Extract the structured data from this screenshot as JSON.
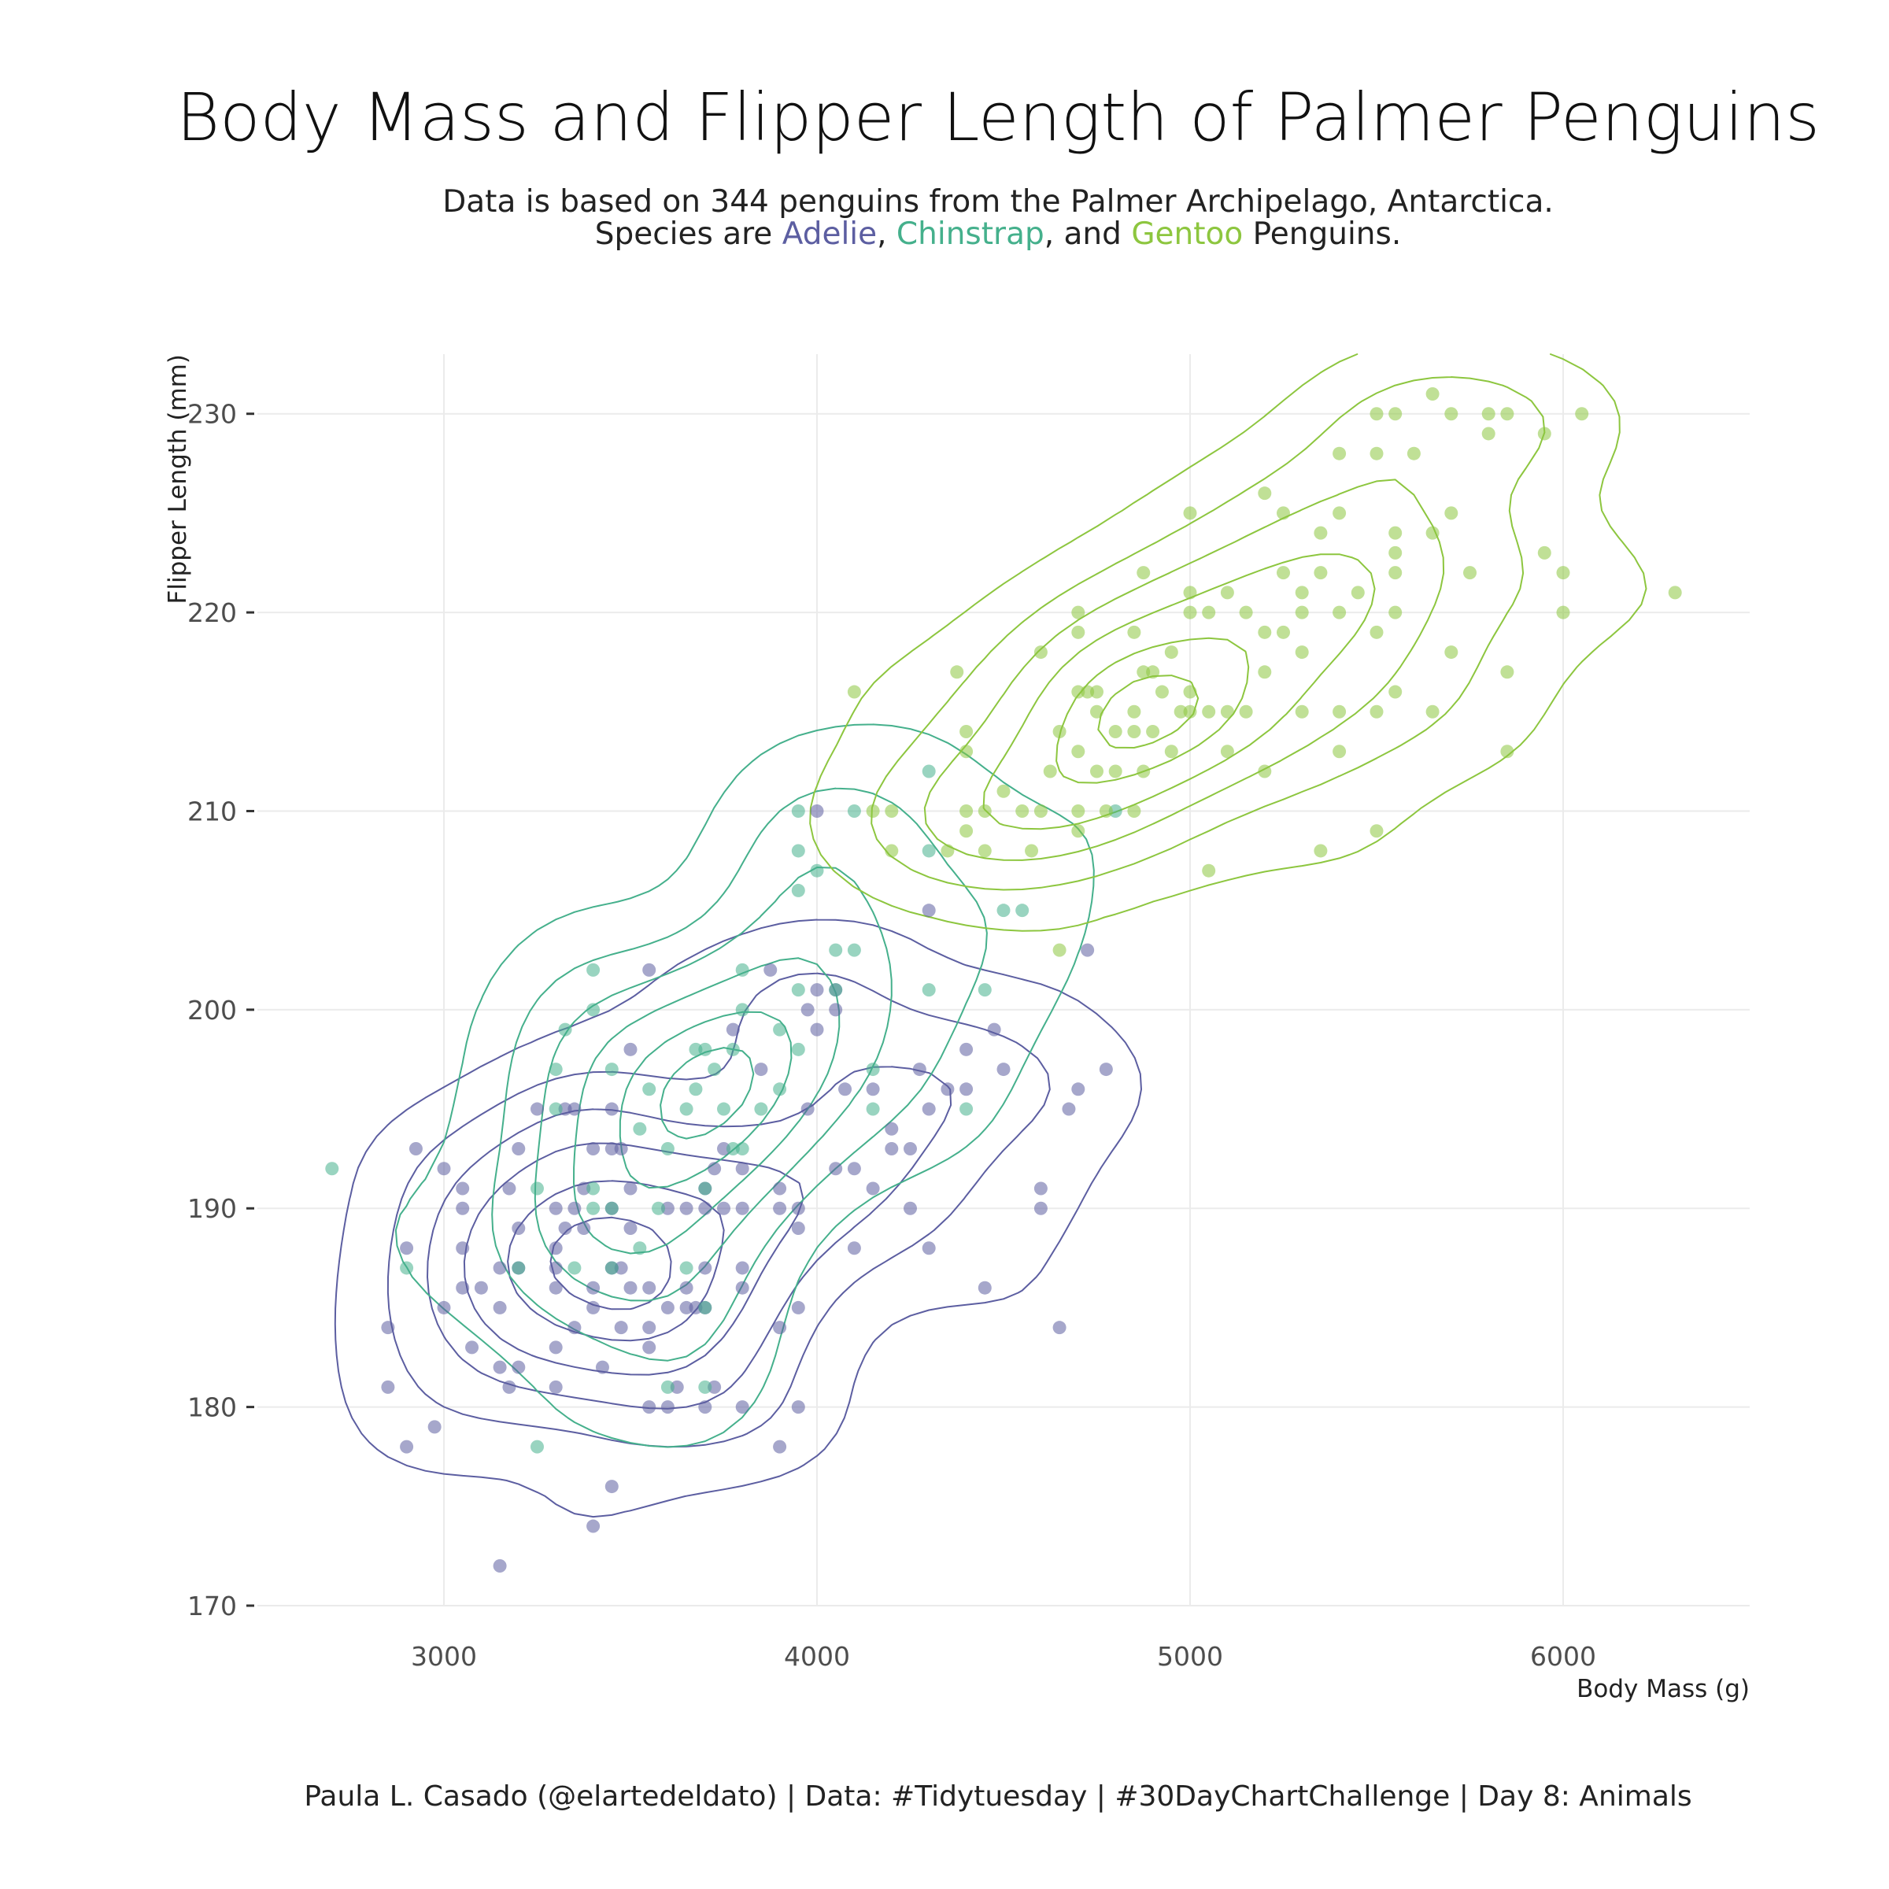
{
  "title": "Body Mass and Flipper Length of Palmer Penguins",
  "subtitle": {
    "line1": "Data is based on 344 penguins from the Palmer Archipelago, Antarctica.",
    "line2_prefix": "Species are ",
    "species": [
      "Adelie",
      "Chinstrap",
      "Gentoo"
    ],
    "sep1": ", ",
    "sep2": ", and ",
    "line2_suffix": " Penguins."
  },
  "caption": "Paula L. Casado (@elartedeldato) | Data: #Tidytuesday | #30DayChartChallenge | Day 8: Animals",
  "colors": {
    "Adelie": "#5C5EA1",
    "Chinstrap": "#45B08C",
    "Gentoo": "#8DC63F",
    "grid": "#EBEBEB"
  },
  "chart_data": {
    "type": "scatter",
    "xlabel": "Body Mass (g)",
    "ylabel": "Flipper Length (mm)",
    "xlim": [
      2500,
      6500
    ],
    "ylim": [
      170,
      233
    ],
    "x_ticks": [
      3000,
      4000,
      5000,
      6000
    ],
    "y_ticks": [
      170,
      180,
      190,
      200,
      210,
      220,
      230
    ],
    "grid": true,
    "legend": "none (species colored in subtitle)",
    "overlay": "2D density contours per species",
    "series": [
      {
        "name": "Adelie",
        "points": [
          [
            2850,
            181
          ],
          [
            2850,
            184
          ],
          [
            2900,
            178
          ],
          [
            2900,
            188
          ],
          [
            2925,
            193
          ],
          [
            2975,
            179
          ],
          [
            3000,
            185
          ],
          [
            3000,
            192
          ],
          [
            3050,
            186
          ],
          [
            3050,
            188
          ],
          [
            3050,
            190
          ],
          [
            3050,
            191
          ],
          [
            3075,
            183
          ],
          [
            3100,
            186
          ],
          [
            3150,
            172
          ],
          [
            3150,
            182
          ],
          [
            3150,
            185
          ],
          [
            3150,
            187
          ],
          [
            3175,
            181
          ],
          [
            3175,
            191
          ],
          [
            3200,
            182
          ],
          [
            3200,
            187
          ],
          [
            3200,
            189
          ],
          [
            3200,
            193
          ],
          [
            3250,
            195
          ],
          [
            3300,
            181
          ],
          [
            3300,
            186
          ],
          [
            3300,
            187
          ],
          [
            3300,
            188
          ],
          [
            3300,
            190
          ],
          [
            3325,
            189
          ],
          [
            3325,
            195
          ],
          [
            3350,
            184
          ],
          [
            3350,
            190
          ],
          [
            3350,
            195
          ],
          [
            3375,
            191
          ],
          [
            3375,
            189
          ],
          [
            3400,
            174
          ],
          [
            3400,
            185
          ],
          [
            3400,
            186
          ],
          [
            3400,
            193
          ],
          [
            3425,
            182
          ],
          [
            3450,
            176
          ],
          [
            3450,
            187
          ],
          [
            3450,
            190
          ],
          [
            3450,
            193
          ],
          [
            3450,
            195
          ],
          [
            3475,
            184
          ],
          [
            3475,
            187
          ],
          [
            3475,
            193
          ],
          [
            3500,
            186
          ],
          [
            3500,
            189
          ],
          [
            3500,
            191
          ],
          [
            3500,
            198
          ],
          [
            3550,
            180
          ],
          [
            3550,
            183
          ],
          [
            3550,
            184
          ],
          [
            3550,
            186
          ],
          [
            3550,
            202
          ],
          [
            3600,
            180
          ],
          [
            3600,
            185
          ],
          [
            3600,
            190
          ],
          [
            3625,
            181
          ],
          [
            3650,
            185
          ],
          [
            3650,
            186
          ],
          [
            3650,
            190
          ],
          [
            3675,
            185
          ],
          [
            3700,
            180
          ],
          [
            3700,
            187
          ],
          [
            3700,
            190
          ],
          [
            3700,
            191
          ],
          [
            3725,
            181
          ],
          [
            3725,
            192
          ],
          [
            3750,
            190
          ],
          [
            3750,
            193
          ],
          [
            3775,
            199
          ],
          [
            3800,
            180
          ],
          [
            3800,
            186
          ],
          [
            3800,
            187
          ],
          [
            3800,
            190
          ],
          [
            3800,
            192
          ],
          [
            3850,
            197
          ],
          [
            3875,
            202
          ],
          [
            3900,
            178
          ],
          [
            3900,
            184
          ],
          [
            3900,
            190
          ],
          [
            3900,
            191
          ],
          [
            3950,
            180
          ],
          [
            3950,
            185
          ],
          [
            3950,
            189
          ],
          [
            3950,
            190
          ],
          [
            3975,
            200
          ],
          [
            3975,
            195
          ],
          [
            4000,
            199
          ],
          [
            4000,
            201
          ],
          [
            4000,
            210
          ],
          [
            4050,
            192
          ],
          [
            4050,
            200
          ],
          [
            4050,
            201
          ],
          [
            4075,
            196
          ],
          [
            4100,
            188
          ],
          [
            4100,
            192
          ],
          [
            4150,
            191
          ],
          [
            4150,
            196
          ],
          [
            4200,
            193
          ],
          [
            4200,
            194
          ],
          [
            4250,
            190
          ],
          [
            4250,
            193
          ],
          [
            4275,
            197
          ],
          [
            4300,
            188
          ],
          [
            4300,
            195
          ],
          [
            4300,
            205
          ],
          [
            4350,
            196
          ],
          [
            4400,
            196
          ],
          [
            4400,
            198
          ],
          [
            4450,
            186
          ],
          [
            4475,
            199
          ],
          [
            4500,
            197
          ],
          [
            4600,
            190
          ],
          [
            4600,
            191
          ],
          [
            4650,
            184
          ],
          [
            4675,
            195
          ],
          [
            4700,
            196
          ],
          [
            4725,
            203
          ],
          [
            4775,
            197
          ],
          [
            3300,
            183
          ],
          [
            3700,
            185
          ]
        ]
      },
      {
        "name": "Chinstrap",
        "points": [
          [
            2700,
            192
          ],
          [
            2900,
            187
          ],
          [
            3200,
            187
          ],
          [
            3250,
            178
          ],
          [
            3250,
            191
          ],
          [
            3300,
            195
          ],
          [
            3300,
            197
          ],
          [
            3325,
            199
          ],
          [
            3350,
            187
          ],
          [
            3400,
            190
          ],
          [
            3400,
            191
          ],
          [
            3400,
            200
          ],
          [
            3400,
            202
          ],
          [
            3450,
            190
          ],
          [
            3450,
            197
          ],
          [
            3525,
            194
          ],
          [
            3525,
            188
          ],
          [
            3550,
            196
          ],
          [
            3575,
            190
          ],
          [
            3600,
            181
          ],
          [
            3600,
            193
          ],
          [
            3650,
            187
          ],
          [
            3650,
            195
          ],
          [
            3675,
            196
          ],
          [
            3675,
            198
          ],
          [
            3700,
            181
          ],
          [
            3700,
            185
          ],
          [
            3700,
            191
          ],
          [
            3700,
            198
          ],
          [
            3725,
            197
          ],
          [
            3750,
            195
          ],
          [
            3775,
            193
          ],
          [
            3775,
            198
          ],
          [
            3800,
            193
          ],
          [
            3800,
            200
          ],
          [
            3800,
            202
          ],
          [
            3850,
            195
          ],
          [
            3900,
            199
          ],
          [
            3900,
            196
          ],
          [
            3950,
            198
          ],
          [
            3950,
            201
          ],
          [
            3950,
            206
          ],
          [
            3950,
            208
          ],
          [
            3950,
            210
          ],
          [
            4000,
            207
          ],
          [
            4050,
            201
          ],
          [
            4050,
            203
          ],
          [
            4100,
            203
          ],
          [
            4100,
            210
          ],
          [
            4150,
            195
          ],
          [
            4150,
            197
          ],
          [
            4300,
            201
          ],
          [
            4300,
            208
          ],
          [
            4300,
            212
          ],
          [
            4400,
            195
          ],
          [
            4450,
            201
          ],
          [
            4500,
            205
          ],
          [
            4550,
            205
          ],
          [
            4800,
            210
          ],
          [
            3450,
            187
          ]
        ]
      },
      {
        "name": "Gentoo",
        "points": [
          [
            4100,
            216
          ],
          [
            4150,
            210
          ],
          [
            4200,
            208
          ],
          [
            4200,
            210
          ],
          [
            4350,
            208
          ],
          [
            4375,
            217
          ],
          [
            4400,
            209
          ],
          [
            4400,
            210
          ],
          [
            4400,
            213
          ],
          [
            4400,
            214
          ],
          [
            4450,
            208
          ],
          [
            4450,
            210
          ],
          [
            4500,
            211
          ],
          [
            4550,
            210
          ],
          [
            4575,
            208
          ],
          [
            4600,
            210
          ],
          [
            4600,
            218
          ],
          [
            4625,
            212
          ],
          [
            4650,
            203
          ],
          [
            4650,
            214
          ],
          [
            4700,
            209
          ],
          [
            4700,
            210
          ],
          [
            4700,
            213
          ],
          [
            4700,
            216
          ],
          [
            4700,
            219
          ],
          [
            4700,
            220
          ],
          [
            4725,
            216
          ],
          [
            4750,
            212
          ],
          [
            4750,
            215
          ],
          [
            4750,
            216
          ],
          [
            4775,
            210
          ],
          [
            4800,
            212
          ],
          [
            4800,
            214
          ],
          [
            4850,
            210
          ],
          [
            4850,
            214
          ],
          [
            4850,
            215
          ],
          [
            4850,
            219
          ],
          [
            4875,
            212
          ],
          [
            4875,
            217
          ],
          [
            4875,
            222
          ],
          [
            4900,
            214
          ],
          [
            4900,
            217
          ],
          [
            4925,
            216
          ],
          [
            4950,
            213
          ],
          [
            4950,
            218
          ],
          [
            4975,
            215
          ],
          [
            5000,
            215
          ],
          [
            5000,
            216
          ],
          [
            5000,
            220
          ],
          [
            5000,
            221
          ],
          [
            5000,
            225
          ],
          [
            5050,
            207
          ],
          [
            5050,
            215
          ],
          [
            5050,
            220
          ],
          [
            5100,
            213
          ],
          [
            5100,
            215
          ],
          [
            5100,
            221
          ],
          [
            5150,
            215
          ],
          [
            5150,
            220
          ],
          [
            5200,
            212
          ],
          [
            5200,
            217
          ],
          [
            5200,
            219
          ],
          [
            5200,
            226
          ],
          [
            5250,
            219
          ],
          [
            5250,
            222
          ],
          [
            5250,
            225
          ],
          [
            5300,
            215
          ],
          [
            5300,
            218
          ],
          [
            5300,
            220
          ],
          [
            5300,
            221
          ],
          [
            5350,
            208
          ],
          [
            5350,
            222
          ],
          [
            5350,
            224
          ],
          [
            5400,
            213
          ],
          [
            5400,
            215
          ],
          [
            5400,
            220
          ],
          [
            5400,
            225
          ],
          [
            5400,
            228
          ],
          [
            5450,
            221
          ],
          [
            5500,
            209
          ],
          [
            5500,
            215
          ],
          [
            5500,
            219
          ],
          [
            5500,
            228
          ],
          [
            5500,
            230
          ],
          [
            5550,
            216
          ],
          [
            5550,
            220
          ],
          [
            5550,
            222
          ],
          [
            5550,
            223
          ],
          [
            5550,
            224
          ],
          [
            5550,
            230
          ],
          [
            5600,
            228
          ],
          [
            5650,
            215
          ],
          [
            5650,
            224
          ],
          [
            5650,
            231
          ],
          [
            5700,
            218
          ],
          [
            5700,
            225
          ],
          [
            5700,
            230
          ],
          [
            5750,
            222
          ],
          [
            5800,
            229
          ],
          [
            5800,
            230
          ],
          [
            5850,
            213
          ],
          [
            5850,
            217
          ],
          [
            5850,
            230
          ],
          [
            5950,
            223
          ],
          [
            5950,
            229
          ],
          [
            6000,
            220
          ],
          [
            6000,
            222
          ],
          [
            6050,
            230
          ],
          [
            6300,
            221
          ]
        ]
      }
    ]
  }
}
